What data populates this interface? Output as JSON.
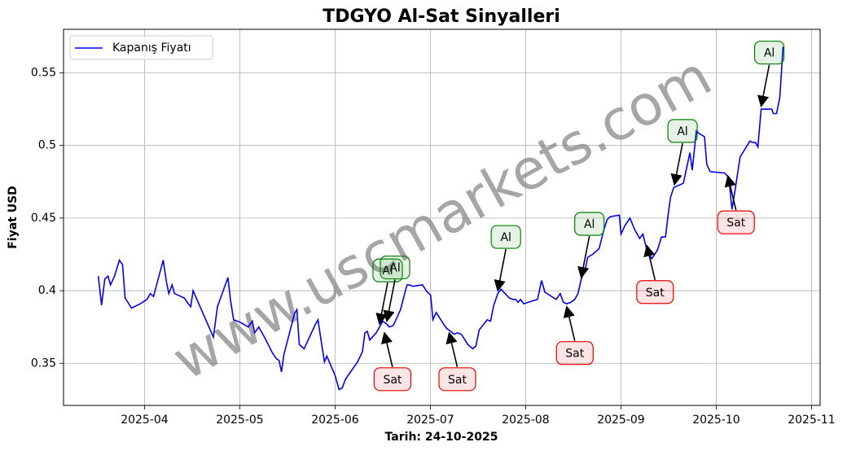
{
  "chart_data": {
    "type": "line",
    "title": "TDGYO Al-Sat Sinyalleri",
    "xlabel": "Tarih: 24-10-2025",
    "ylabel": "Fiyat USD",
    "watermark": "www.uscmarkets.com",
    "grid": true,
    "legend": "upper left",
    "xlim": [
      3.15,
      11.09
    ],
    "ylim": [
      0.321,
      0.58
    ],
    "xticks": [
      {
        "value": 4,
        "label": "2025-04"
      },
      {
        "value": 5,
        "label": "2025-05"
      },
      {
        "value": 6,
        "label": "2025-06"
      },
      {
        "value": 7,
        "label": "2025-07"
      },
      {
        "value": 8,
        "label": "2025-08"
      },
      {
        "value": 9,
        "label": "2025-09"
      },
      {
        "value": 10,
        "label": "2025-10"
      },
      {
        "value": 11,
        "label": "2025-11"
      }
    ],
    "yticks": [
      0.35,
      0.4,
      0.45,
      0.5,
      0.55
    ],
    "x": [
      3.515,
      3.549,
      3.583,
      3.617,
      3.643,
      3.685,
      3.736,
      3.77,
      3.796,
      3.864,
      3.957,
      4.026,
      4.06,
      4.094,
      4.196,
      4.23,
      4.255,
      4.289,
      4.315,
      4.417,
      4.459,
      4.485,
      4.51,
      4.663,
      4.723,
      4.765,
      4.876,
      4.901,
      4.935,
      5.012,
      5.088,
      5.131,
      5.156,
      5.199,
      5.259,
      5.344,
      5.386,
      5.412,
      5.437,
      5.463,
      5.573,
      5.599,
      5.624,
      5.675,
      5.794,
      5.82,
      5.862,
      5.888,
      5.913,
      5.998,
      6.041,
      6.075,
      6.109,
      6.236,
      6.287,
      6.313,
      6.338,
      6.364,
      6.432,
      6.466,
      6.5,
      6.543,
      6.568,
      6.611,
      6.687,
      6.73,
      6.755,
      6.781,
      6.815,
      6.917,
      6.968,
      7.002,
      7.027,
      7.061,
      7.138,
      7.172,
      7.214,
      7.248,
      7.282,
      7.325,
      7.393,
      7.444,
      7.478,
      7.512,
      7.597,
      7.631,
      7.665,
      7.707,
      7.741,
      7.827,
      7.869,
      7.895,
      7.92,
      7.946,
      7.98,
      8.073,
      8.124,
      8.167,
      8.201,
      8.32,
      8.362,
      8.396,
      8.43,
      8.473,
      8.515,
      8.549,
      8.583,
      8.626,
      8.651,
      8.702,
      8.77,
      8.821,
      8.855,
      8.889,
      8.983,
      9.0,
      9.043,
      9.094,
      9.145,
      9.196,
      9.23,
      9.272,
      9.323,
      9.383,
      9.425,
      9.468,
      9.493,
      9.519,
      9.553,
      9.655,
      9.723,
      9.748,
      9.791,
      9.825,
      9.876,
      9.901,
      9.935,
      10.088,
      10.131,
      10.165,
      10.199,
      10.25,
      10.352,
      10.386,
      10.412,
      10.437,
      10.471,
      10.556,
      10.582,
      10.599,
      10.633,
      10.667,
      10.701
    ],
    "series": [
      {
        "name": "Kapanış Fiyatı",
        "color": "#0000ee",
        "values": [
          0.41,
          0.39,
          0.408,
          0.41,
          0.404,
          0.41,
          0.421,
          0.418,
          0.395,
          0.388,
          0.391,
          0.394,
          0.398,
          0.396,
          0.421,
          0.406,
          0.398,
          0.404,
          0.398,
          0.395,
          0.391,
          0.389,
          0.4,
          0.377,
          0.368,
          0.389,
          0.409,
          0.394,
          0.38,
          0.378,
          0.375,
          0.379,
          0.371,
          0.375,
          0.368,
          0.357,
          0.353,
          0.352,
          0.344,
          0.356,
          0.384,
          0.387,
          0.363,
          0.36,
          0.377,
          0.38,
          0.362,
          0.351,
          0.355,
          0.342,
          0.332,
          0.333,
          0.339,
          0.351,
          0.358,
          0.371,
          0.372,
          0.366,
          0.371,
          0.375,
          0.379,
          0.377,
          0.375,
          0.376,
          0.387,
          0.398,
          0.404,
          0.404,
          0.403,
          0.404,
          0.399,
          0.397,
          0.38,
          0.385,
          0.377,
          0.374,
          0.372,
          0.37,
          0.371,
          0.37,
          0.363,
          0.36,
          0.362,
          0.373,
          0.38,
          0.379,
          0.39,
          0.398,
          0.401,
          0.395,
          0.394,
          0.394,
          0.392,
          0.394,
          0.391,
          0.393,
          0.394,
          0.407,
          0.399,
          0.394,
          0.398,
          0.392,
          0.391,
          0.392,
          0.394,
          0.398,
          0.408,
          0.415,
          0.423,
          0.425,
          0.429,
          0.442,
          0.449,
          0.451,
          0.452,
          0.439,
          0.445,
          0.45,
          0.442,
          0.436,
          0.439,
          0.428,
          0.422,
          0.428,
          0.437,
          0.437,
          0.451,
          0.464,
          0.471,
          0.474,
          0.495,
          0.483,
          0.51,
          0.508,
          0.506,
          0.487,
          0.482,
          0.481,
          0.478,
          0.456,
          0.47,
          0.492,
          0.503,
          0.502,
          0.502,
          0.499,
          0.525,
          0.525,
          0.525,
          0.522,
          0.522,
          0.533,
          0.568
        ]
      }
    ],
    "annotations": [
      {
        "text": "Al",
        "x": 6.466,
        "y": 0.377,
        "color": "#008000"
      },
      {
        "text": "Al",
        "x": 6.543,
        "y": 0.379,
        "color": "#008000"
      },
      {
        "text": "Sat",
        "x": 6.517,
        "y": 0.371,
        "color": "#ee0000"
      },
      {
        "text": "Sat",
        "x": 7.197,
        "y": 0.371,
        "color": "#ee0000"
      },
      {
        "text": "Al",
        "x": 7.707,
        "y": 0.4,
        "color": "#008000"
      },
      {
        "text": "Sat",
        "x": 8.43,
        "y": 0.389,
        "color": "#ee0000"
      },
      {
        "text": "Al",
        "x": 8.583,
        "y": 0.409,
        "color": "#008000"
      },
      {
        "text": "Sat",
        "x": 9.272,
        "y": 0.431,
        "color": "#ee0000"
      },
      {
        "text": "Al",
        "x": 9.561,
        "y": 0.473,
        "color": "#008000"
      },
      {
        "text": "Sat",
        "x": 10.122,
        "y": 0.479,
        "color": "#ee0000"
      },
      {
        "text": "Al",
        "x": 10.471,
        "y": 0.527,
        "color": "#008000"
      }
    ]
  }
}
